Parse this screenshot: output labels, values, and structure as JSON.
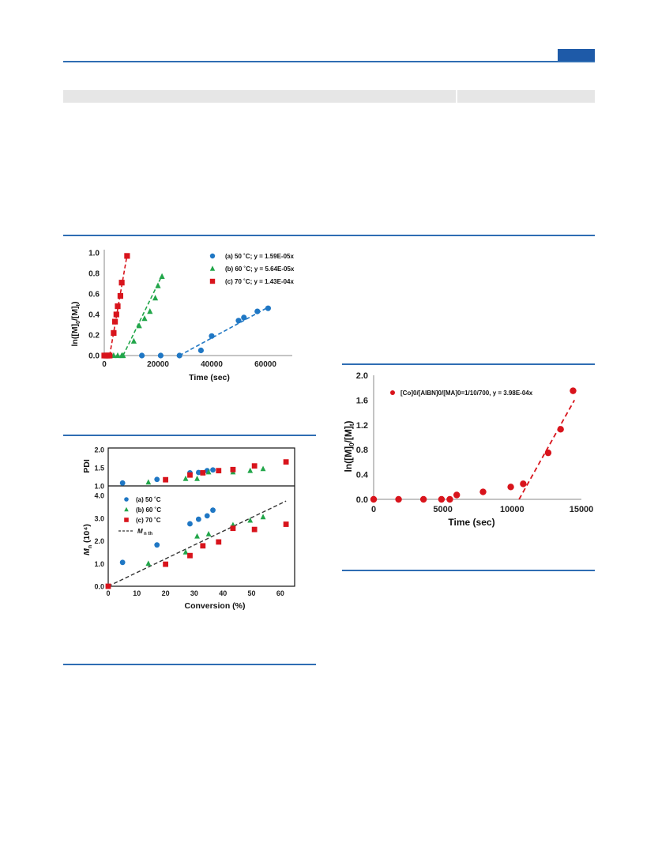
{
  "colors": {
    "blue": "#1f77c4",
    "green": "#22a64a",
    "red": "#d8141c",
    "rule": "#2f6db3"
  },
  "chart_data": [
    {
      "type": "scatter",
      "xlabel": "Time (sec)",
      "ylabel": "ln([M]0/[M]t)",
      "xlim": [
        0,
        70000
      ],
      "ylim": [
        0,
        1.0
      ],
      "xticks": [
        "0",
        "20000",
        "40000",
        "60000"
      ],
      "yticks": [
        "0.0",
        "0.2",
        "0.4",
        "0.6",
        "0.8",
        "1.0"
      ],
      "legend_position": "top-right",
      "series": [
        {
          "name": "(a)   50 ˚C; y = 1.59E-05x",
          "color": "#1f77c4",
          "marker": "circle",
          "x": [
            0,
            14000,
            21000,
            28000,
            36000,
            40000,
            50000,
            52000,
            57000,
            61000
          ],
          "y": [
            0,
            0,
            0,
            0,
            0.05,
            0.19,
            0.34,
            0.37,
            0.43,
            0.46
          ],
          "fit": [
            [
              28000,
              0
            ],
            [
              61000,
              0.47
            ]
          ]
        },
        {
          "name": "(b)   60 ˚C; y = 5.64E-05x",
          "color": "#22a64a",
          "marker": "triangle",
          "x": [
            0,
            1500,
            3500,
            5000,
            6500,
            7000,
            11000,
            13000,
            15000,
            17000,
            19000,
            20000,
            21500
          ],
          "y": [
            0,
            0,
            0,
            0,
            0,
            0,
            0.14,
            0.29,
            0.36,
            0.43,
            0.56,
            0.68,
            0.77
          ],
          "fit": [
            [
              7000,
              0
            ],
            [
              21500,
              0.78
            ]
          ]
        },
        {
          "name": "(c)   70 ˚C; y = 1.43E-04x",
          "color": "#d8141c",
          "marker": "square",
          "x": [
            0,
            500,
            1000,
            1500,
            2000,
            3500,
            4000,
            4500,
            5000,
            6000,
            6500,
            8500
          ],
          "y": [
            0,
            0,
            0,
            0,
            0,
            0.22,
            0.33,
            0.4,
            0.48,
            0.58,
            0.71,
            0.97
          ],
          "fit": [
            [
              2000,
              0
            ],
            [
              8500,
              0.98
            ]
          ]
        }
      ]
    },
    {
      "type": "scatter",
      "xlabel": "Conversion (%)",
      "ylabel_top": "PDI",
      "ylabel_bottom": "Mn (10⁴)",
      "xlim": [
        0,
        65
      ],
      "ylim_top": [
        1.0,
        2.0
      ],
      "ylim_bottom": [
        0,
        4.0
      ],
      "xticks": [
        "0",
        "10",
        "20",
        "30",
        "40",
        "50",
        "60"
      ],
      "yticks_top": [
        "1.0",
        "1.5",
        "2.0"
      ],
      "yticks_bottom": [
        "0.0",
        "1.0",
        "2.0",
        "3.0",
        "4.0"
      ],
      "legend_position": "top-left",
      "theory_label": "M",
      "theory_sub": "n th",
      "theory_line": [
        [
          0,
          0
        ],
        [
          62,
          3.75
        ]
      ],
      "series": [
        {
          "name": "(a)   50 ˚C",
          "color": "#1f77c4",
          "marker": "circle",
          "conv": [
            0,
            5,
            17,
            28.5,
            31.5,
            34.5,
            36.5
          ],
          "mn": [
            0,
            1.05,
            1.82,
            2.75,
            2.95,
            3.1,
            3.35
          ],
          "pdi": [
            null,
            1.08,
            1.18,
            1.36,
            1.37,
            1.42,
            1.44
          ]
        },
        {
          "name": "(b)   60 ˚C",
          "color": "#22a64a",
          "marker": "triangle",
          "conv": [
            0,
            14,
            27,
            31,
            35,
            43.5,
            49.5,
            54
          ],
          "mn": [
            0,
            1.0,
            1.5,
            2.2,
            2.3,
            2.7,
            2.9,
            3.05
          ],
          "pdi": [
            null,
            1.1,
            1.2,
            1.2,
            1.38,
            1.38,
            1.42,
            1.47
          ]
        },
        {
          "name": "(c)   70 ˚C",
          "color": "#d8141c",
          "marker": "square",
          "conv": [
            0,
            20,
            28.5,
            33,
            38.5,
            43.5,
            51,
            62
          ],
          "mn": [
            0,
            0.97,
            1.35,
            1.78,
            1.95,
            2.55,
            2.5,
            2.73
          ],
          "pdi": [
            null,
            1.17,
            1.3,
            1.36,
            1.42,
            1.45,
            1.55,
            1.66
          ]
        }
      ]
    },
    {
      "type": "scatter",
      "xlabel": "Time (sec)",
      "ylabel": "ln([M]0/[M]t)",
      "xlim": [
        0,
        15000
      ],
      "ylim": [
        0,
        2.0
      ],
      "xticks": [
        "0",
        "5000",
        "10000",
        "15000"
      ],
      "yticks": [
        "0.0",
        "0.4",
        "0.8",
        "1.2",
        "1.6",
        "2.0"
      ],
      "legend_position": "top-left",
      "series": [
        {
          "name": "[Co]0/[AIBN]0/[MA]0=1/10/700, y = 3.98E-04x",
          "color": "#d8141c",
          "marker": "circle",
          "x": [
            0,
            1800,
            3600,
            4900,
            5500,
            6000,
            7900,
            9900,
            10800,
            12600,
            13500,
            14400
          ],
          "y": [
            0,
            0,
            0,
            0,
            0,
            0.07,
            0.12,
            0.2,
            0.25,
            0.75,
            1.13,
            1.75
          ],
          "fit": [
            [
              10500,
              0
            ],
            [
              14500,
              1.6
            ]
          ]
        }
      ]
    }
  ]
}
